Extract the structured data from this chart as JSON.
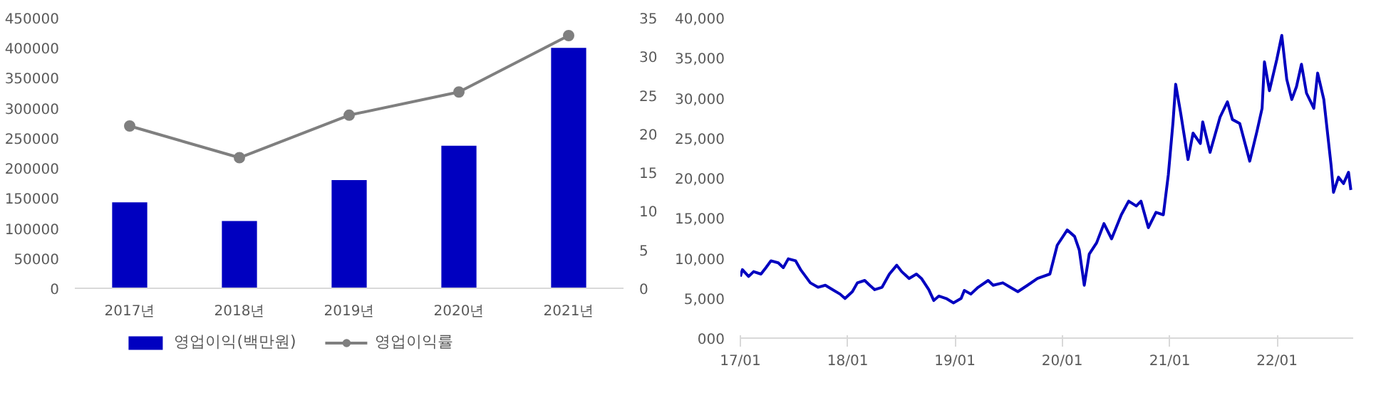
{
  "chart_data": [
    {
      "type": "bar",
      "categories": [
        "2017년",
        "2018년",
        "2019년",
        "2020년",
        "2021년"
      ],
      "series": [
        {
          "name": "영업이익(백만원)",
          "type": "bar",
          "color": "#0000c0",
          "values": [
            143000,
            112000,
            180000,
            237000,
            400000
          ]
        },
        {
          "name": "영업이익률",
          "type": "line",
          "axis": "y2",
          "color": "#7f7f7f",
          "values": [
            21.0,
            16.9,
            22.4,
            25.4,
            32.7
          ]
        }
      ],
      "ylim": [
        0,
        450000
      ],
      "yticks": [
        0,
        50000,
        100000,
        150000,
        200000,
        250000,
        300000,
        350000,
        400000,
        450000
      ],
      "y2lim": [
        0,
        35
      ],
      "y2ticks": [
        0,
        5,
        10,
        15,
        20,
        25,
        30,
        35
      ],
      "legend": "bottom",
      "marker": "circle",
      "grid": false
    },
    {
      "type": "line",
      "x": [
        "2017-01-01",
        "2017-01-08",
        "2017-01-29",
        "2017-02-15",
        "2017-03-12",
        "2017-03-29",
        "2017-04-15",
        "2017-05-10",
        "2017-05-27",
        "2017-06-13",
        "2017-07-08",
        "2017-07-25",
        "2017-08-11",
        "2017-08-27",
        "2017-09-22",
        "2017-10-17",
        "2017-11-11",
        "2017-12-06",
        "2017-12-23",
        "2018-01-17",
        "2018-02-03",
        "2018-02-28",
        "2018-03-17",
        "2018-04-03",
        "2018-04-28",
        "2018-05-23",
        "2018-06-17",
        "2018-07-04",
        "2018-07-29",
        "2018-08-23",
        "2018-09-09",
        "2018-10-04",
        "2018-10-21",
        "2018-11-07",
        "2018-12-02",
        "2018-12-27",
        "2019-01-22",
        "2019-02-02",
        "2019-02-24",
        "2019-03-21",
        "2019-04-24",
        "2019-05-11",
        "2019-06-13",
        "2019-07-08",
        "2019-08-03",
        "2019-09-05",
        "2019-10-09",
        "2019-11-20",
        "2019-12-15",
        "2020-01-18",
        "2020-02-12",
        "2020-02-28",
        "2020-03-16",
        "2020-04-02",
        "2020-04-27",
        "2020-05-22",
        "2020-06-17",
        "2020-07-20",
        "2020-08-14",
        "2020-09-09",
        "2020-09-25",
        "2020-10-20",
        "2020-11-15",
        "2020-12-10",
        "2020-12-27",
        "2021-01-12",
        "2021-01-21",
        "2021-02-07",
        "2021-03-04",
        "2021-03-21",
        "2021-04-15",
        "2021-04-23",
        "2021-05-18",
        "2021-06-21",
        "2021-07-16",
        "2021-08-02",
        "2021-08-27",
        "2021-09-30",
        "2021-10-25",
        "2021-11-11",
        "2021-11-19",
        "2021-12-06",
        "2021-12-31",
        "2022-01-17",
        "2022-02-03",
        "2022-02-20",
        "2022-03-08",
        "2022-03-25",
        "2022-04-11",
        "2022-05-06",
        "2022-05-19",
        "2022-06-09",
        "2022-07-04",
        "2022-07-12",
        "2022-07-29",
        "2022-08-15",
        "2022-09-01",
        "2022-09-09"
      ],
      "series": [
        {
          "color": "#0000c0",
          "values": [
            7700,
            8550,
            7700,
            8300,
            8000,
            8800,
            9650,
            9400,
            8800,
            9900,
            9650,
            8550,
            7700,
            6900,
            6350,
            6600,
            6050,
            5500,
            4950,
            5800,
            6900,
            7200,
            6600,
            6050,
            6350,
            8000,
            9100,
            8300,
            7450,
            8000,
            7450,
            6050,
            4700,
            5250,
            4950,
            4400,
            4950,
            5950,
            5500,
            6350,
            7200,
            6600,
            6900,
            6350,
            5800,
            6600,
            7450,
            8000,
            11600,
            13500,
            12700,
            11000,
            6600,
            10500,
            11900,
            14300,
            12400,
            15400,
            17100,
            16500,
            17100,
            13800,
            15700,
            15400,
            20400,
            27000,
            31700,
            28100,
            22300,
            25600,
            24300,
            27000,
            23200,
            27600,
            29500,
            27300,
            26800,
            22100,
            25900,
            28700,
            34500,
            30900,
            34800,
            37800,
            32300,
            29800,
            31400,
            34200,
            30600,
            28700,
            33100,
            29800,
            21500,
            18200,
            20100,
            19300,
            20700,
            18500
          ]
        }
      ],
      "xlim": [
        "2017-01-01",
        "2022-09-17"
      ],
      "xticks": [
        {
          "value": "2017-01-01",
          "label": "17/01"
        },
        {
          "value": "2018-01-01",
          "label": "18/01"
        },
        {
          "value": "2019-01-01",
          "label": "19/01"
        },
        {
          "value": "2020-01-01",
          "label": "20/01"
        },
        {
          "value": "2021-01-01",
          "label": "21/01"
        },
        {
          "value": "2022-01-01",
          "label": "22/01"
        }
      ],
      "ylim": [
        0,
        40000
      ],
      "yticks": [
        {
          "value": 0,
          "label": "000"
        },
        {
          "value": 5000,
          "label": "5,000"
        },
        {
          "value": 10000,
          "label": "10,000"
        },
        {
          "value": 15000,
          "label": "15,000"
        },
        {
          "value": 20000,
          "label": "20,000"
        },
        {
          "value": 25000,
          "label": "25,000"
        },
        {
          "value": 30000,
          "label": "30,000"
        },
        {
          "value": 35000,
          "label": "35,000"
        },
        {
          "value": 40000,
          "label": "40,000"
        }
      ],
      "grid": false,
      "line_style": "solid"
    }
  ]
}
